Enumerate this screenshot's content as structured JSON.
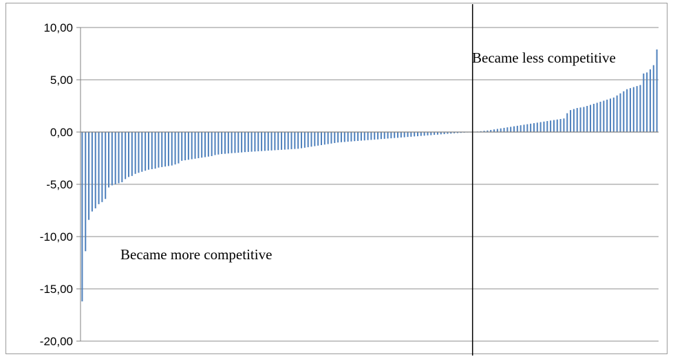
{
  "chart_data": {
    "type": "bar",
    "title": "",
    "xlabel": "",
    "ylabel": "",
    "ylim": [
      -20,
      10
    ],
    "yticks": [
      10,
      5,
      0,
      -5,
      -10,
      -15,
      -20
    ],
    "ytick_labels": [
      "10,00",
      "5,00",
      "0,00",
      "-5,00",
      "-10,00",
      "-15,00",
      "-20,00"
    ],
    "grid": "horizontal",
    "legend": "none",
    "bar_color": "#4F81BD",
    "annotations": {
      "less": "Became less competitive",
      "more": "Became more competitive"
    },
    "values": [
      -16.2,
      -11.4,
      -8.4,
      -7.6,
      -7.3,
      -6.9,
      -6.7,
      -6.4,
      -5.3,
      -5.1,
      -5.0,
      -4.9,
      -4.8,
      -4.5,
      -4.3,
      -4.2,
      -4.0,
      -3.9,
      -3.8,
      -3.7,
      -3.6,
      -3.55,
      -3.5,
      -3.4,
      -3.35,
      -3.3,
      -3.25,
      -3.2,
      -3.1,
      -3.0,
      -2.75,
      -2.7,
      -2.65,
      -2.6,
      -2.55,
      -2.5,
      -2.45,
      -2.4,
      -2.35,
      -2.3,
      -2.2,
      -2.15,
      -2.1,
      -2.08,
      -2.05,
      -2.02,
      -2.0,
      -1.98,
      -1.95,
      -1.92,
      -1.9,
      -1.88,
      -1.86,
      -1.84,
      -1.82,
      -1.8,
      -1.78,
      -1.76,
      -1.74,
      -1.72,
      -1.7,
      -1.68,
      -1.66,
      -1.64,
      -1.62,
      -1.6,
      -1.55,
      -1.5,
      -1.45,
      -1.4,
      -1.35,
      -1.3,
      -1.25,
      -1.2,
      -1.15,
      -1.1,
      -1.05,
      -1.0,
      -0.97,
      -0.95,
      -0.92,
      -0.9,
      -0.87,
      -0.85,
      -0.82,
      -0.8,
      -0.77,
      -0.75,
      -0.72,
      -0.7,
      -0.67,
      -0.65,
      -0.62,
      -0.6,
      -0.57,
      -0.55,
      -0.52,
      -0.5,
      -0.47,
      -0.45,
      -0.42,
      -0.4,
      -0.37,
      -0.35,
      -0.32,
      -0.3,
      -0.27,
      -0.25,
      -0.22,
      -0.2,
      -0.17,
      -0.15,
      -0.12,
      -0.1,
      -0.08,
      -0.06,
      -0.04,
      -0.02,
      0.02,
      0.05,
      0.08,
      0.12,
      0.15,
      0.2,
      0.25,
      0.3,
      0.35,
      0.4,
      0.45,
      0.5,
      0.55,
      0.6,
      0.65,
      0.7,
      0.75,
      0.8,
      0.85,
      0.9,
      0.95,
      1.0,
      1.05,
      1.1,
      1.15,
      1.2,
      1.25,
      1.3,
      1.8,
      2.1,
      2.2,
      2.3,
      2.35,
      2.4,
      2.5,
      2.6,
      2.7,
      2.8,
      2.9,
      3.0,
      3.1,
      3.2,
      3.3,
      3.5,
      3.7,
      3.9,
      4.1,
      4.2,
      4.3,
      4.4,
      4.5,
      5.6,
      5.7,
      6.0,
      6.4,
      7.9
    ]
  }
}
